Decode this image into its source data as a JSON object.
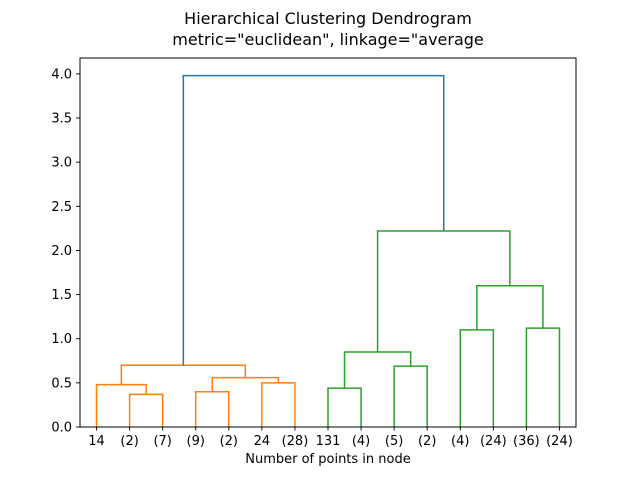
{
  "figure": {
    "kind": "matplotlib-dendrogram-figure"
  },
  "chart_data": {
    "type": "dendrogram",
    "title": "Hierarchical Clustering Dendrogram",
    "subtitle": "metric=\"euclidean\", linkage=\"average",
    "xlabel": "Number of points in node",
    "ylabel": "",
    "legend": "none",
    "grid": false,
    "yticks": [
      0.0,
      0.5,
      1.0,
      1.5,
      2.0,
      2.5,
      3.0,
      3.5,
      4.0
    ],
    "ylim": [
      0,
      4.18
    ],
    "xlim_units": [
      0,
      150
    ],
    "leaf_spacing_units": 10,
    "first_leaf_unit": 5,
    "leaves": [
      "14",
      "(2)",
      "(7)",
      "(9)",
      "(2)",
      "24",
      "(28)",
      "131",
      "(4)",
      "(5)",
      "(2)",
      "(4)",
      "(24)",
      "(36)",
      "(24)"
    ],
    "merges": [
      {
        "a": 1,
        "b": 2,
        "h": 0.37,
        "color": "orange"
      },
      {
        "a": 0,
        "b": 15,
        "h": 0.48,
        "color": "orange"
      },
      {
        "a": 3,
        "b": 4,
        "h": 0.4,
        "color": "orange"
      },
      {
        "a": 5,
        "b": 6,
        "h": 0.5,
        "color": "orange"
      },
      {
        "a": 17,
        "b": 18,
        "h": 0.56,
        "color": "orange"
      },
      {
        "a": 16,
        "b": 19,
        "h": 0.7,
        "color": "orange"
      },
      {
        "a": 7,
        "b": 8,
        "h": 0.44,
        "color": "green"
      },
      {
        "a": 9,
        "b": 10,
        "h": 0.69,
        "color": "green"
      },
      {
        "a": 21,
        "b": 22,
        "h": 0.85,
        "color": "green"
      },
      {
        "a": 11,
        "b": 12,
        "h": 1.1,
        "color": "green"
      },
      {
        "a": 13,
        "b": 14,
        "h": 1.12,
        "color": "green"
      },
      {
        "a": 24,
        "b": 25,
        "h": 1.6,
        "color": "green"
      },
      {
        "a": 23,
        "b": 26,
        "h": 2.22,
        "color": "green"
      },
      {
        "a": 20,
        "b": 27,
        "h": 3.98,
        "color": "blue"
      }
    ],
    "colors": {
      "orange": "#ff7f0e",
      "green": "#2ca02c",
      "blue": "#1f77b4",
      "axis": "#000000"
    }
  }
}
